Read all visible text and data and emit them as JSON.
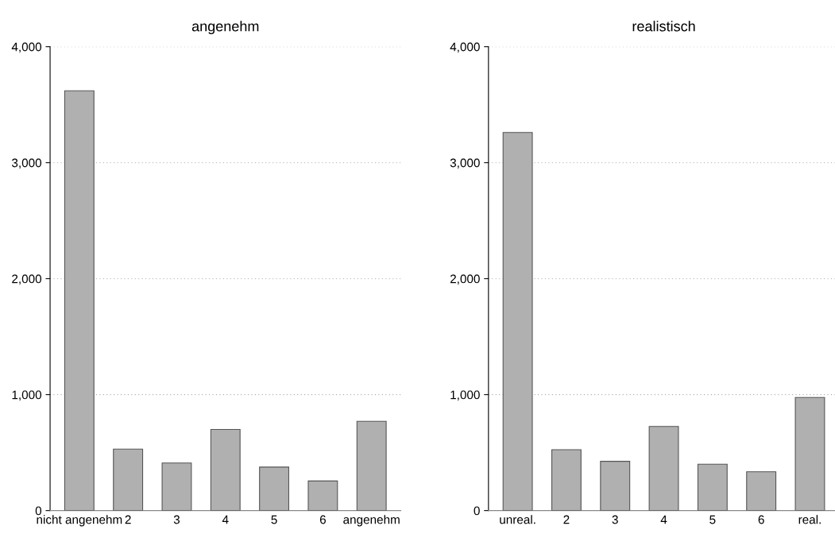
{
  "chart_data": [
    {
      "type": "bar",
      "title": "angenehm",
      "categories": [
        "nicht angenehm",
        "2",
        "3",
        "4",
        "5",
        "6",
        "angenehm"
      ],
      "values": [
        3620,
        530,
        410,
        700,
        375,
        255,
        770
      ],
      "color": "#b0b0b0",
      "ylim": [
        0,
        4000
      ],
      "yticks": [
        {
          "value": 0,
          "label": "0"
        },
        {
          "value": 1000,
          "label": "1,000"
        },
        {
          "value": 2000,
          "label": "2,000"
        },
        {
          "value": 3000,
          "label": "3,000"
        },
        {
          "value": 4000,
          "label": "4,000"
        }
      ],
      "grid": "y",
      "legend": false
    },
    {
      "type": "bar",
      "title": "realistisch",
      "categories": [
        "unreal.",
        "2",
        "3",
        "4",
        "5",
        "6",
        "real."
      ],
      "values": [
        3260,
        525,
        425,
        725,
        400,
        335,
        975
      ],
      "color": "#b0b0b0",
      "ylim": [
        0,
        4000
      ],
      "yticks": [
        {
          "value": 0,
          "label": "0"
        },
        {
          "value": 1000,
          "label": "1,000"
        },
        {
          "value": 2000,
          "label": "2,000"
        },
        {
          "value": 3000,
          "label": "3,000"
        },
        {
          "value": 4000,
          "label": "4,000"
        }
      ],
      "grid": "y",
      "legend": false
    }
  ]
}
